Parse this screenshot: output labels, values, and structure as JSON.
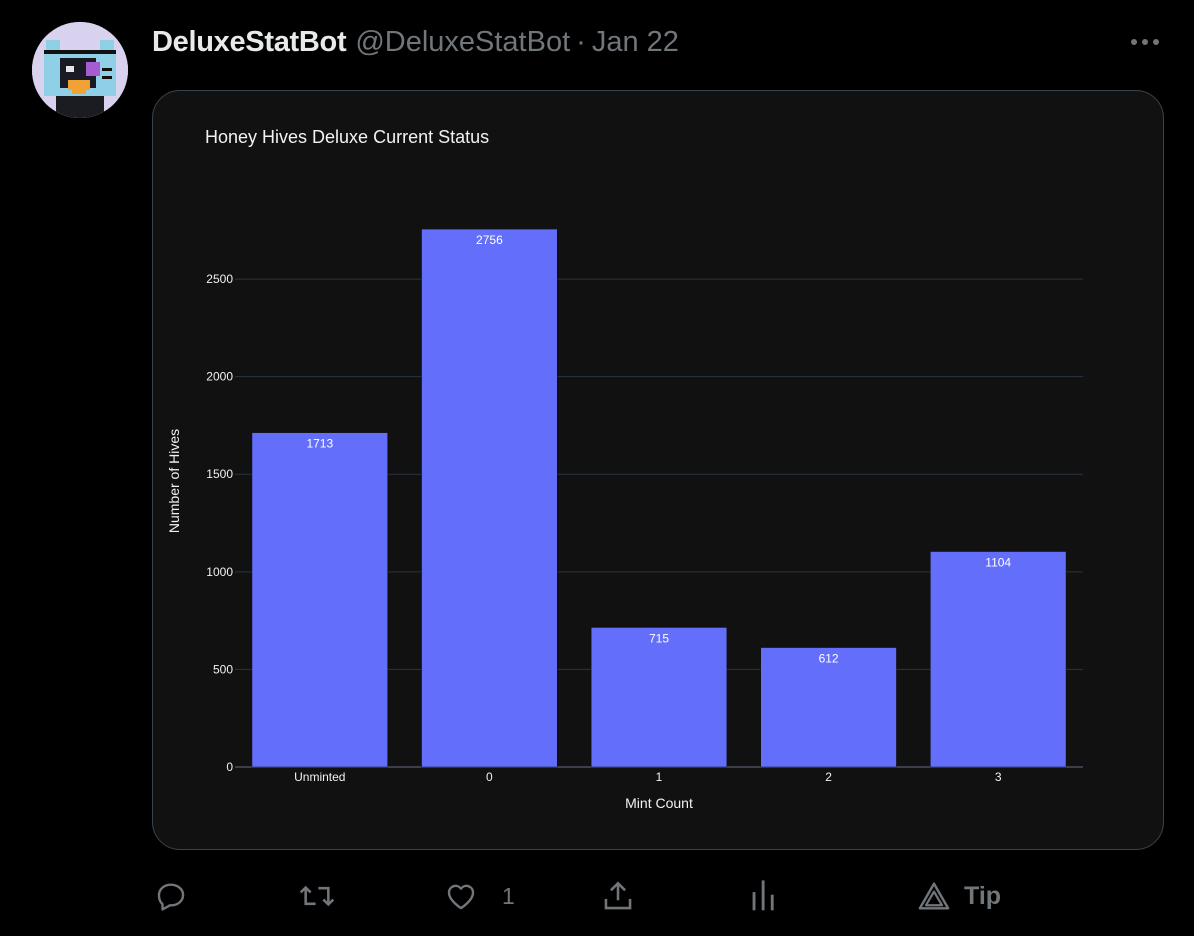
{
  "tweet": {
    "display_name": "DeluxeStatBot",
    "handle": "@DeluxeStatBot",
    "separator": "·",
    "date": "Jan 22",
    "avatar_icon": "pixel-cat-avatar",
    "more_icon": "more-horizontal-icon"
  },
  "actions": {
    "reply_icon": "reply-icon",
    "retweet_icon": "retweet-icon",
    "like_icon": "heart-icon",
    "like_count": "1",
    "share_icon": "share-icon",
    "analytics_icon": "analytics-icon",
    "tip_icon": "tip-icon",
    "tip_label": "Tip"
  },
  "colors": {
    "background": "#000000",
    "card_background": "#111111",
    "bar": "#636efa",
    "muted_text": "#71767b"
  },
  "chart_data": {
    "type": "bar",
    "title": "Honey Hives Deluxe Current Status",
    "xlabel": "Mint Count",
    "ylabel": "Number of Hives",
    "categories": [
      "Unminted",
      "0",
      "1",
      "2",
      "3"
    ],
    "values": [
      1713,
      2756,
      715,
      612,
      1104
    ],
    "ylim": [
      0,
      2900
    ],
    "yticks": [
      0,
      500,
      1000,
      1500,
      2000,
      2500
    ],
    "grid": true,
    "legend": false
  }
}
